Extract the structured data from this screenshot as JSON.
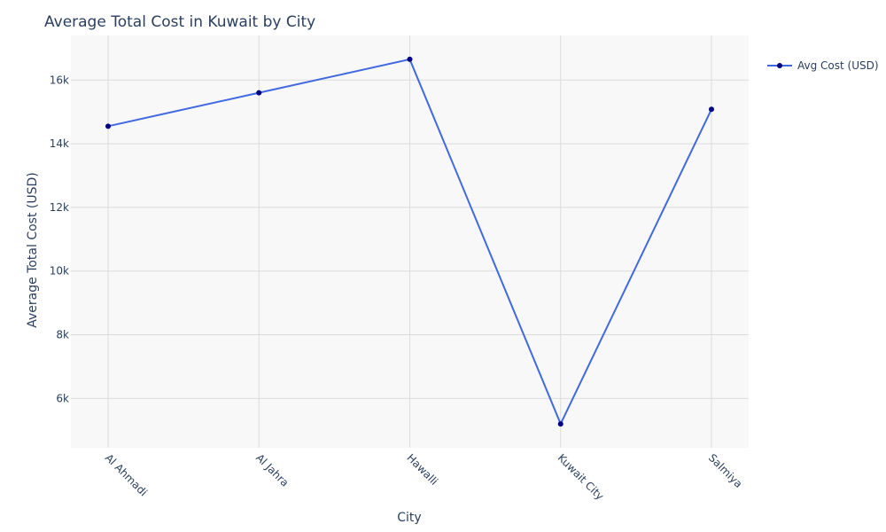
{
  "chart_data": {
    "type": "line",
    "title": "Average Total Cost in Kuwait by City",
    "xlabel": "City",
    "ylabel": "Average Total Cost (USD)",
    "categories": [
      "Al Ahmadi",
      "Al Jahra",
      "Hawalli",
      "Kuwait City",
      "Salmiya"
    ],
    "series": [
      {
        "name": "Avg Cost (USD)",
        "values": [
          14550,
          15600,
          16650,
          5200,
          15080
        ]
      }
    ],
    "ylim": [
      4450,
      17400
    ],
    "yticks": [
      6000,
      8000,
      10000,
      12000,
      14000,
      16000
    ],
    "ytick_labels": [
      "6k",
      "8k",
      "10k",
      "12k",
      "14k",
      "16k"
    ],
    "grid": true,
    "legend_position": "top-right",
    "colors": {
      "line": "#4169e1",
      "marker": "#000080",
      "plot_background": "#f8f8f8",
      "grid": "#dcdcdc",
      "text": "#2a3f5f"
    }
  }
}
